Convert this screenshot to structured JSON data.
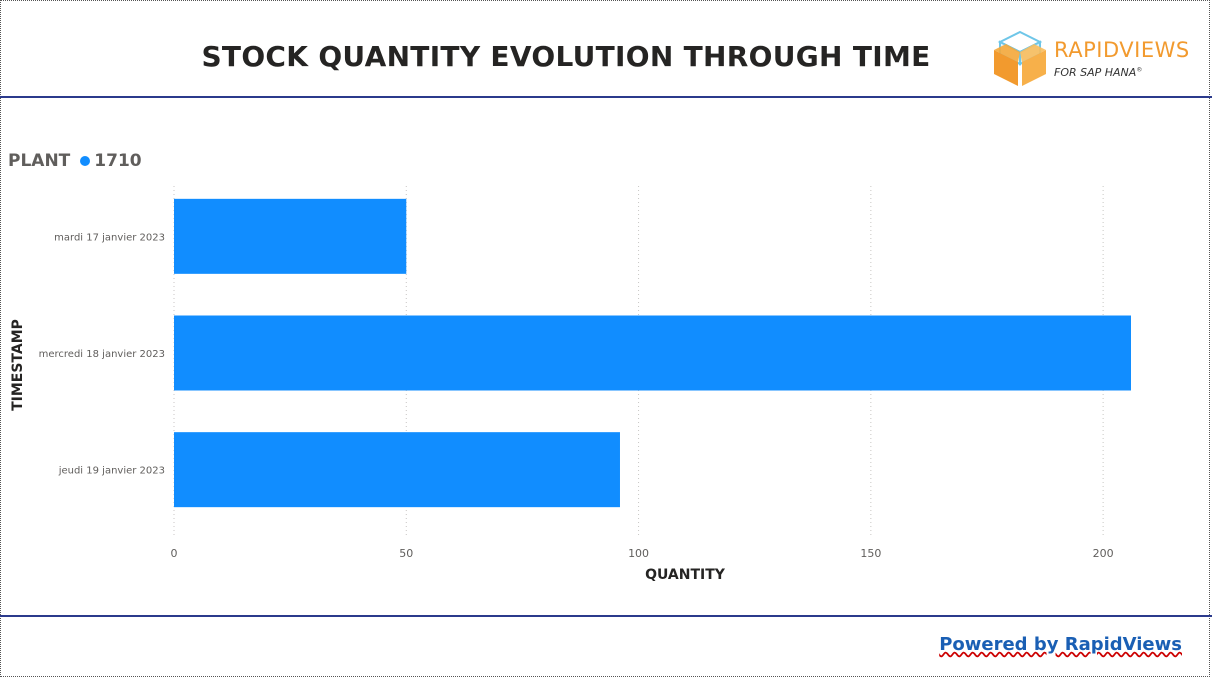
{
  "header": {
    "title": "STOCK QUANTITY EVOLUTION THROUGH TIME",
    "logo_name": "RAPIDVIEWS",
    "logo_subtitle": "FOR SAP HANA"
  },
  "legend": {
    "title": "PLANT",
    "entry": "1710",
    "color": "#118dff"
  },
  "footer": {
    "link_label": "Powered by RapidViews"
  },
  "chart_data": {
    "type": "bar",
    "orientation": "horizontal",
    "categories": [
      "mardi 17 janvier 2023",
      "mercredi 18 janvier 2023",
      "jeudi 19 janvier 2023"
    ],
    "series": [
      {
        "name": "1710",
        "values": [
          50,
          206,
          96
        ],
        "color": "#118dff"
      }
    ],
    "xlabel": "QUANTITY",
    "ylabel": "TIMESTAMP",
    "xlim": [
      0,
      206
    ],
    "xticks": [
      0,
      50,
      100,
      150,
      200
    ],
    "grid": true,
    "legend_position": "top-left"
  }
}
